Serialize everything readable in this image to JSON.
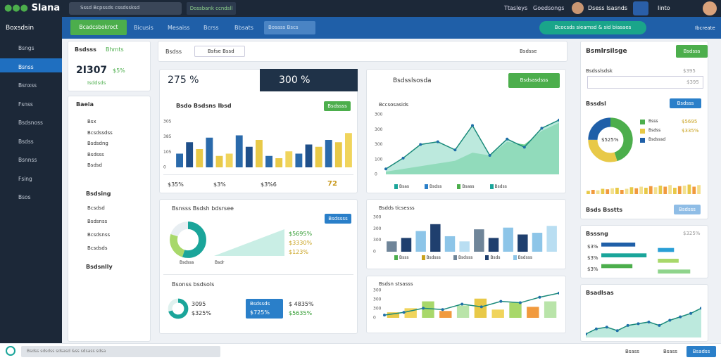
{
  "topbar": {
    "brand": "Slana",
    "search": "Sssd Bcpssds cssdssksd",
    "action": "Dossbank ccndsll",
    "links": [
      "Ttasleys",
      "Goedsongs"
    ],
    "user": "Dsess Isasnds",
    "help": "Iinto"
  },
  "navbar": {
    "app": "Boxsdsin",
    "tabs": [
      "Bcadcsbokroct",
      "Bicusis",
      "Mesaiss",
      "Bcrss",
      "Bbsats"
    ],
    "dropdown": "Bosass Bscs",
    "status": "Bcocsds sieamsd & sid biasaes",
    "account": "Ibcreate"
  },
  "sidebar": [
    "Bsngs",
    "Bsnss",
    "Bsnxss",
    "Fsnss",
    "Bsdsnoss",
    "Bsdss",
    "Bsnnss",
    "Fsing",
    "Bsos"
  ],
  "panel": {
    "title": "Bsdsss",
    "badge": "Bhmts",
    "metric": "2I307",
    "change": "$5%",
    "note": "Isddsds",
    "section": "Baeia",
    "items": [
      "Bsx",
      "Bcsdssdss",
      "Bsdsdng",
      "Bsdsss",
      "Bsdsd"
    ],
    "section2": "Bsdsing",
    "items2": [
      "Bcsdsd",
      "Bsdsnss",
      "Bcsdsnss",
      "Bcsdsds"
    ],
    "footer": "Bsdsnlly"
  },
  "toolbar": {
    "label": "Bsdss",
    "search": "Bsfse Bssd",
    "filter": "Bsdsse"
  },
  "card1": {
    "kpi": "275 %",
    "kpi2": "300 %",
    "title": "Bsdo Bsdsns Ibsd",
    "button": "Bsdssss",
    "ylabels": [
      "305",
      "385",
      "105",
      "0"
    ],
    "stats": [
      "$35%",
      "$3%",
      "$3%6",
      "72"
    ]
  },
  "card2": {
    "title": "Bsdsslsosda",
    "button": "Bsdsasdsss",
    "subtitle": "Bccsosasids",
    "ylabels": [
      "300",
      "300",
      "300",
      "100",
      "0"
    ],
    "legend": [
      "Bsas",
      "Bsdss",
      "Bsass",
      "Bsdss"
    ]
  },
  "card3": {
    "title": "Bsnsss Bsdsh bdsrsee",
    "button": "Bsdssss",
    "label": "Bsdsss",
    "area_label": "Bsdr",
    "values": [
      "$5695%",
      "$3330%",
      "$123%"
    ],
    "title2": "Bsonss bsdsols",
    "kpi": "3095",
    "kpi_b": "$325%",
    "box_title": "Bsdssds",
    "box_value": "$725%",
    "side_a": "$ 4835%",
    "side_b": "$5635%"
  },
  "card4": {
    "title": "Bsdds ticsesss",
    "ylabels": [
      "300",
      "300",
      "300",
      "0"
    ],
    "legend": [
      "Bsss",
      "Bsdsss",
      "Bsdsss",
      "Bsds",
      "Bsdsss"
    ]
  },
  "card5": {
    "title": "Bsdsn stsasss",
    "ylabels": [
      "300",
      "300",
      "300",
      "0"
    ]
  },
  "right": {
    "title": "Bsmlrsilsge",
    "button": "Bsdsss",
    "row_label": "Bsdsslsdsk",
    "row_value": "$395",
    "row2_value": "$395",
    "section": "Bssdsl",
    "section_button": "Bsdsss",
    "legend": [
      "Bsss",
      "Bsdss",
      "Bsdsssd"
    ],
    "legend_values": [
      "$5695",
      "$335%",
      ""
    ],
    "donut_label": "$525%",
    "footer": "Bsds Bsstts",
    "footer_button": "Bsdsss",
    "card2_title": "Bsssng",
    "card2_value": "$325%",
    "hlabels": [
      "$3%",
      "$3%",
      "$3%"
    ],
    "card3_title": "Bsadlsas"
  },
  "bottombar": {
    "field": "Bsdss sdsdss sdsasd &ss sdsass sdsa",
    "buttons": [
      "Bsass",
      "Bsass",
      "Bsadss"
    ]
  },
  "charts": {
    "c1": {
      "values": [
        30,
        55,
        40,
        65,
        25,
        30,
        70,
        45,
        60,
        25,
        20,
        35,
        30,
        50,
        45,
        60,
        55,
        75
      ],
      "colors": [
        "#2a6aab",
        "#1f4f8a",
        "#e8c948",
        "#2a6aab",
        "#e8c948",
        "#f0d45c"
      ],
      "max": 100
    },
    "c2": {
      "area": [
        10,
        30,
        55,
        60,
        45,
        90,
        35,
        65,
        50,
        85,
        100
      ],
      "area2": [
        5,
        10,
        15,
        20,
        25,
        40,
        35,
        60,
        55,
        80,
        95
      ],
      "line": [
        10,
        30,
        55,
        60,
        45,
        90,
        35,
        65,
        50,
        85,
        100
      ],
      "max": 110
    },
    "c3": {
      "donut": [
        55,
        25,
        20
      ],
      "colors": [
        "#1aa59a",
        "#a8d86a",
        "#e8eef2"
      ]
    },
    "c3b": {
      "donut": [
        70,
        30
      ],
      "colors": [
        "#1aa59a",
        "#dff1ee"
      ]
    },
    "c4": {
      "values": [
        30,
        40,
        60,
        80,
        45,
        30,
        65,
        40,
        70,
        50,
        55,
        75
      ],
      "colors": [
        "#6f8599",
        "#1f3f6e",
        "#8dc5e8",
        "#1f3f6e",
        "#8dc5e8",
        "#b9def2"
      ],
      "max": 100
    },
    "c5": {
      "values": [
        20,
        35,
        60,
        25,
        45,
        70,
        30,
        55,
        40,
        60
      ],
      "colors": [
        "#e8c948",
        "#f0d45c",
        "#a8d86a",
        "#f19a3e",
        "#b9e4a9"
      ],
      "line": [
        10,
        20,
        35,
        30,
        50,
        40,
        60,
        55,
        75,
        90
      ],
      "max": 100
    },
    "r1": {
      "donut": [
        45,
        30,
        25
      ],
      "colors": [
        "#4cae4c",
        "#e8c948",
        "#1f5fa8"
      ]
    },
    "r2": {
      "values": [
        30,
        40,
        35,
        50,
        45,
        55,
        60,
        40,
        50,
        65,
        55,
        70,
        60,
        75,
        65,
        80,
        70,
        85,
        60,
        75,
        80,
        90,
        70,
        85
      ],
      "colors": [
        "#e8c948",
        "#f19a3e",
        "#f3e08e"
      ],
      "max": 100
    },
    "r3": {
      "hbars": [
        60,
        35,
        80,
        45,
        55,
        70
      ],
      "colors": [
        "#1f5fa8",
        "#2a9fd6",
        "#1aa59a",
        "#a8d86a",
        "#4cae4c",
        "#8fd48c"
      ]
    },
    "r4": {
      "area": [
        10,
        25,
        30,
        20,
        35,
        40,
        45,
        35,
        50,
        60,
        70,
        85
      ],
      "line": [
        10,
        25,
        30,
        20,
        35,
        40,
        45,
        35,
        50,
        60,
        70,
        85
      ],
      "max": 100
    }
  }
}
